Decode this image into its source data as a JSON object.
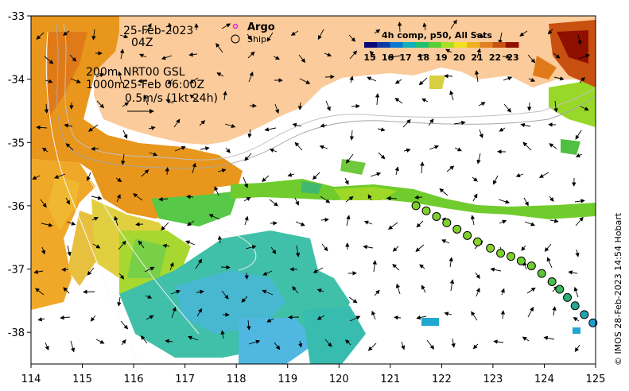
{
  "header": {
    "date": "25-Feb-2023",
    "time": "04Z",
    "depth_200": "200m",
    "depth_1000": "1000m",
    "product": "NRT00 GSL",
    "valid": "25-Feb 06:00Z",
    "scale_label": "0.5m/s (1kt 24h)"
  },
  "legend": {
    "argo": "Argo",
    "ship": "Ship",
    "argo_color": "#e020e0"
  },
  "colorbar": {
    "title": "4h comp, p50, All Sats",
    "ticks": [
      "15",
      "16",
      "17",
      "18",
      "19",
      "20",
      "21",
      "22",
      "23"
    ],
    "colors": [
      "#08087a",
      "#0a3aa8",
      "#0a78d0",
      "#10b0b8",
      "#20c070",
      "#58d030",
      "#a8e020",
      "#f0e020",
      "#f0b020",
      "#e08020",
      "#c85010",
      "#901000"
    ]
  },
  "axes": {
    "x_ticks": [
      "114",
      "115",
      "116",
      "117",
      "118",
      "119",
      "120",
      "121",
      "122",
      "123",
      "124",
      "125"
    ],
    "y_ticks": [
      "-33",
      "-34",
      "-35",
      "-36",
      "-37",
      "-38"
    ]
  },
  "credit": "© IMOS 28-Feb-2023 14:54 Hobart",
  "colors": {
    "land": "#fbcb9b",
    "warm": "#e8961c",
    "cool": "#3cc8b8"
  },
  "ship_track": {
    "lons": [
      121.5,
      121.7,
      121.9,
      122.1,
      122.3,
      122.5,
      122.7,
      122.95,
      123.15,
      123.35,
      123.55,
      123.75,
      123.95,
      124.15,
      124.3,
      124.45,
      124.6,
      124.78,
      124.95
    ],
    "lats": [
      -36.0,
      -36.08,
      -36.17,
      -36.27,
      -36.37,
      -36.47,
      -36.57,
      -36.67,
      -36.75,
      -36.8,
      -36.87,
      -36.95,
      -37.07,
      -37.2,
      -37.32,
      -37.45,
      -37.58,
      -37.72,
      -37.85
    ],
    "colors": [
      "#7ed12b",
      "#7ed12b",
      "#7ed12b",
      "#7ed12b",
      "#7ed12b",
      "#7ed12b",
      "#8ad52b",
      "#8ad52b",
      "#7ed12b",
      "#7ed12b",
      "#6ecb30",
      "#6ecb30",
      "#5cc43a",
      "#4cbd48",
      "#3cb55c",
      "#2aad72",
      "#26a892",
      "#22a3b0",
      "#1f9ed0"
    ]
  }
}
